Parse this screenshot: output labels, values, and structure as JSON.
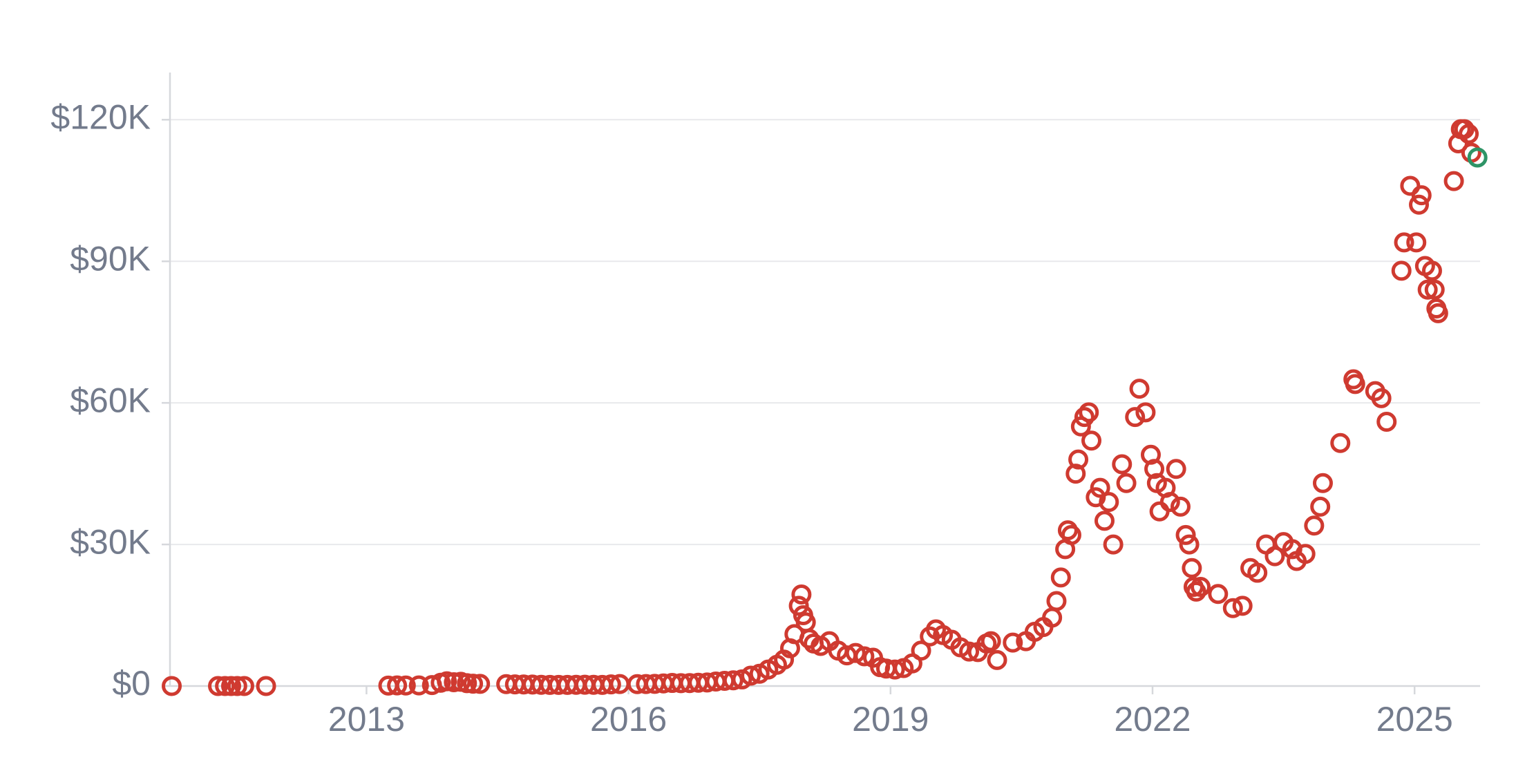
{
  "chart_data": {
    "type": "scatter",
    "xlim": [
      2010.75,
      2025.75
    ],
    "xticks": [
      2013,
      2016,
      2019,
      2022,
      2025
    ],
    "ylim": [
      0,
      130000
    ],
    "yticks": [
      {
        "value": 0,
        "label": "$0"
      },
      {
        "value": 30000,
        "label": "$30K"
      },
      {
        "value": 60000,
        "label": "$60K"
      },
      {
        "value": 90000,
        "label": "$90K"
      },
      {
        "value": 120000,
        "label": "$120K"
      }
    ],
    "grid": true,
    "series": [
      {
        "color": "#cf3a30",
        "x": [
          2010.77,
          2011.3,
          2011.38,
          2011.45,
          2011.52,
          2011.6,
          2011.85,
          2013.25,
          2013.35,
          2013.45,
          2013.6,
          2013.75,
          2013.85,
          2013.92,
          2014.0,
          2014.08,
          2014.15,
          2014.22,
          2014.3,
          2014.6,
          2014.7,
          2014.8,
          2014.9,
          2015.0,
          2015.1,
          2015.2,
          2015.3,
          2015.4,
          2015.5,
          2015.6,
          2015.7,
          2015.8,
          2015.9,
          2016.1,
          2016.2,
          2016.3,
          2016.4,
          2016.5,
          2016.6,
          2016.7,
          2016.8,
          2016.9,
          2017.0,
          2017.1,
          2017.2,
          2017.3,
          2017.4,
          2017.5,
          2017.6,
          2017.7,
          2017.78,
          2017.85,
          2017.9,
          2017.95,
          2017.98,
          2018.0,
          2018.03,
          2018.07,
          2018.12,
          2018.2,
          2018.3,
          2018.4,
          2018.5,
          2018.6,
          2018.7,
          2018.8,
          2018.88,
          2018.95,
          2019.05,
          2019.15,
          2019.25,
          2019.35,
          2019.45,
          2019.52,
          2019.6,
          2019.7,
          2019.8,
          2019.9,
          2020.0,
          2020.1,
          2020.15,
          2020.22,
          2020.4,
          2020.55,
          2020.65,
          2020.75,
          2020.85,
          2020.9,
          2020.95,
          2021.0,
          2021.03,
          2021.07,
          2021.12,
          2021.15,
          2021.18,
          2021.22,
          2021.27,
          2021.3,
          2021.35,
          2021.4,
          2021.45,
          2021.5,
          2021.55,
          2021.65,
          2021.7,
          2021.8,
          2021.85,
          2021.92,
          2021.98,
          2022.02,
          2022.05,
          2022.08,
          2022.15,
          2022.2,
          2022.27,
          2022.32,
          2022.38,
          2022.42,
          2022.45,
          2022.47,
          2022.5,
          2022.55,
          2022.75,
          2022.92,
          2023.03,
          2023.12,
          2023.2,
          2023.3,
          2023.4,
          2023.5,
          2023.6,
          2023.65,
          2023.75,
          2023.85,
          2023.92,
          2023.95,
          2024.15,
          2024.3,
          2024.32,
          2024.55,
          2024.62,
          2024.68,
          2024.85,
          2024.88,
          2024.95,
          2025.02,
          2025.05,
          2025.08,
          2025.12,
          2025.15,
          2025.2,
          2025.23,
          2025.25,
          2025.27,
          2025.45,
          2025.5,
          2025.53,
          2025.57,
          2025.62,
          2025.65
        ],
        "values": [
          0,
          0,
          0,
          0,
          0,
          0,
          0,
          100,
          120,
          110,
          130,
          200,
          700,
          1000,
          800,
          900,
          600,
          500,
          450,
          400,
          350,
          330,
          320,
          250,
          240,
          230,
          240,
          250,
          280,
          260,
          240,
          350,
          420,
          400,
          420,
          450,
          550,
          650,
          600,
          620,
          700,
          750,
          950,
          1100,
          1200,
          1400,
          2200,
          2600,
          3500,
          4500,
          5600,
          8000,
          11000,
          17000,
          19400,
          15000,
          13500,
          10000,
          9000,
          8500,
          9500,
          7500,
          6500,
          7000,
          6300,
          6000,
          4000,
          3700,
          3500,
          3800,
          4800,
          7500,
          10500,
          12000,
          10800,
          9800,
          8200,
          7300,
          7200,
          9000,
          9500,
          5500,
          9200,
          9500,
          11500,
          12500,
          14500,
          18000,
          23000,
          29000,
          33000,
          32000,
          45000,
          48000,
          55000,
          57000,
          58000,
          52000,
          40000,
          42000,
          35000,
          39000,
          30000,
          47000,
          43000,
          57000,
          63000,
          58000,
          49000,
          46000,
          43000,
          37000,
          42000,
          39000,
          46000,
          38000,
          32000,
          30000,
          25000,
          21000,
          20000,
          21000,
          19500,
          16500,
          17000,
          25000,
          24000,
          30000,
          27500,
          30500,
          29000,
          26500,
          28000,
          34000,
          38000,
          43000,
          51500,
          65000,
          64000,
          62500,
          61000,
          56000,
          88000,
          94000,
          106000,
          94000,
          102000,
          104000,
          89000,
          84000,
          88000,
          84000,
          80000,
          79000,
          107000,
          115000,
          118000,
          118000,
          117000,
          113000
        ]
      },
      {
        "color": "#2e9466",
        "x": [
          2025.72
        ],
        "values": [
          112000
        ]
      }
    ]
  }
}
